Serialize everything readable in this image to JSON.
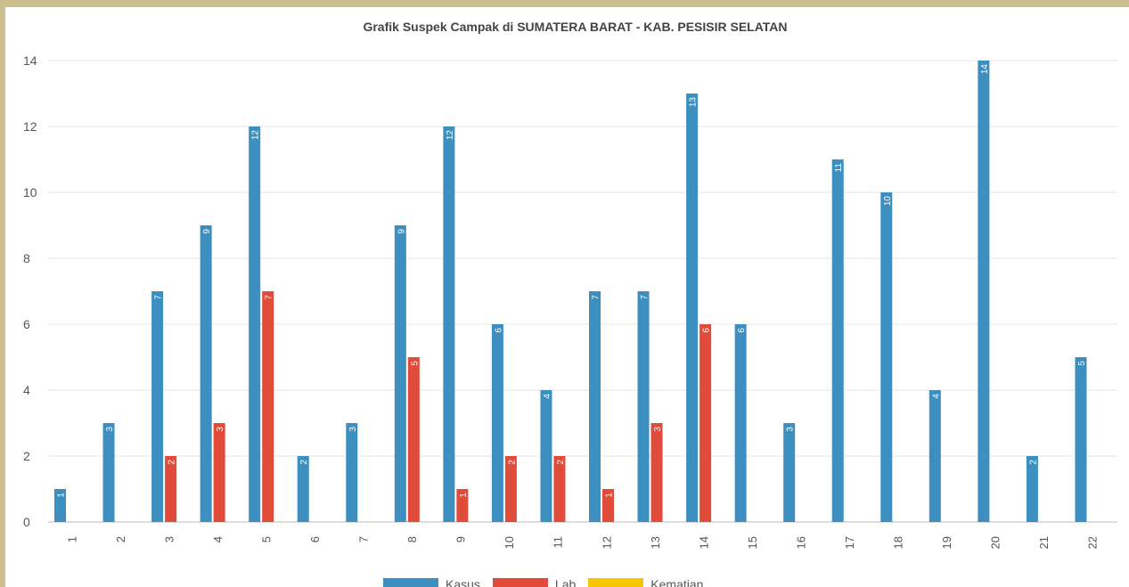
{
  "chart_data": {
    "type": "bar",
    "title": "Grafik Suspek Campak di SUMATERA BARAT - KAB. PESISIR SELATAN",
    "xlabel": "",
    "ylabel": "",
    "categories": [
      "1",
      "2",
      "3",
      "4",
      "5",
      "6",
      "7",
      "8",
      "9",
      "10",
      "11",
      "12",
      "13",
      "14",
      "15",
      "16",
      "17",
      "18",
      "19",
      "20",
      "21",
      "22"
    ],
    "ylim": [
      0,
      14
    ],
    "yticks": [
      0,
      2,
      4,
      6,
      8,
      10,
      12,
      14
    ],
    "grid": true,
    "legend_position": "bottom",
    "series": [
      {
        "name": "Kasus",
        "color": "#3d8fc0",
        "values": [
          1,
          3,
          7,
          9,
          12,
          2,
          3,
          9,
          12,
          6,
          4,
          7,
          7,
          13,
          6,
          3,
          11,
          10,
          4,
          14,
          2,
          5
        ]
      },
      {
        "name": "Lab",
        "color": "#e04b3a",
        "values": [
          0,
          0,
          2,
          3,
          7,
          0,
          0,
          5,
          1,
          2,
          2,
          1,
          3,
          6,
          0,
          0,
          0,
          0,
          0,
          0,
          0,
          0
        ]
      },
      {
        "name": "Kematian",
        "color": "#f6c700",
        "values": [
          0,
          0,
          0,
          0,
          0,
          0,
          0,
          0,
          0,
          0,
          0,
          0,
          0,
          0,
          0,
          0,
          0,
          0,
          0,
          0,
          0,
          0
        ]
      }
    ]
  }
}
